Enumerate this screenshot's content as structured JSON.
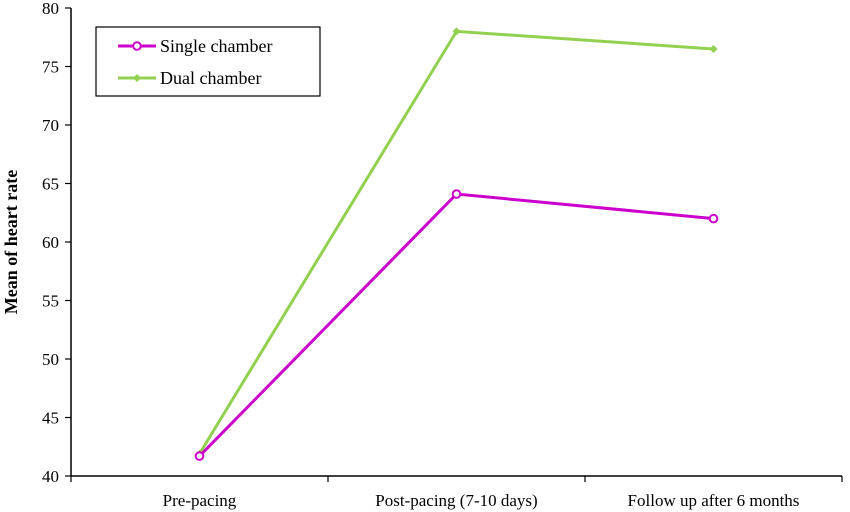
{
  "chart_data": {
    "type": "line",
    "title": "",
    "xlabel": "",
    "ylabel": "Mean of heart rate",
    "categories": [
      "Pre-pacing",
      "Post-pacing (7-10 days)",
      "Follow up after 6 months"
    ],
    "ylim": [
      40,
      80
    ],
    "yticks": [
      40,
      45,
      50,
      55,
      60,
      65,
      70,
      75,
      80
    ],
    "grid": false,
    "legend_position": "top-left",
    "series": [
      {
        "name": "Single chamber",
        "values": [
          41.7,
          64.1,
          62.0
        ],
        "color": "#cc00cc",
        "marker": "circle"
      },
      {
        "name": "Dual chamber",
        "values": [
          41.9,
          78.0,
          76.5
        ],
        "color": "#92d050",
        "marker": "diamond"
      }
    ]
  }
}
